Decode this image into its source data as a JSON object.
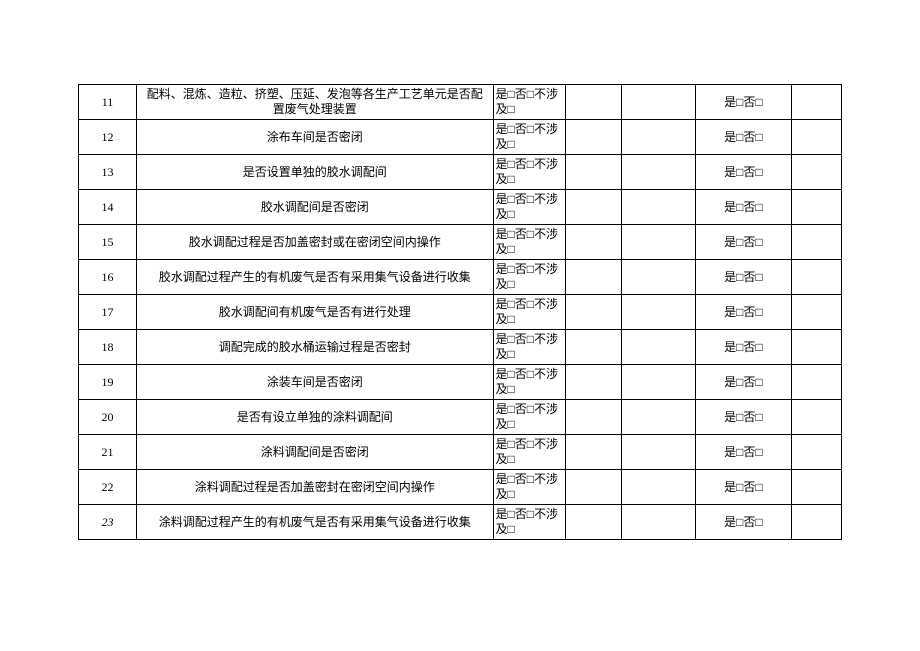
{
  "table": {
    "columns": {
      "num_width": 58,
      "desc_width": 356,
      "opt_width": 72,
      "blank1_width": 56,
      "blank2_width": 74,
      "res_width": 96,
      "blank3_width": 50
    },
    "border_color": "#000000",
    "background_color": "#ffffff",
    "font_family": "SimSun",
    "font_size_pt": 9,
    "rows": [
      {
        "num": "11",
        "num_italic": false,
        "desc": "配料、混炼、造粒、挤塑、压延、发泡等各生产工艺单元是否配置废气处理装置",
        "opt": "是□否□不涉及□",
        "res": "是□否□"
      },
      {
        "num": "12",
        "num_italic": false,
        "desc": "涂布车间是否密闭",
        "opt": "是□否□不涉及□",
        "res": "是□否□"
      },
      {
        "num": "13",
        "num_italic": false,
        "desc": "是否设置单独的胶水调配间",
        "opt": "是□否□不涉及□",
        "res": "是□否□"
      },
      {
        "num": "14",
        "num_italic": false,
        "desc": "胶水调配间是否密闭",
        "opt": "是□否□不涉及□",
        "res": "是□否□"
      },
      {
        "num": "15",
        "num_italic": false,
        "desc": "胶水调配过程是否加盖密封或在密闭空间内操作",
        "opt": "是□否□不涉及□",
        "res": "是□否□"
      },
      {
        "num": "16",
        "num_italic": false,
        "desc": "胶水调配过程产生的有机废气是否有采用集气设备进行收集",
        "opt": "是□否□不涉及□",
        "res": "是□否□"
      },
      {
        "num": "17",
        "num_italic": false,
        "desc": "胶水调配间有机废气是否有进行处理",
        "opt": "是□否□不涉及□",
        "res": "是□否□"
      },
      {
        "num": "18",
        "num_italic": false,
        "desc": "调配完成的胶水桶运输过程是否密封",
        "opt": "是□否□不涉及□",
        "res": "是□否□"
      },
      {
        "num": "19",
        "num_italic": false,
        "desc": "涂装车间是否密闭",
        "opt": "是□否□不涉及□",
        "res": "是□否□"
      },
      {
        "num": "20",
        "num_italic": false,
        "desc": "是否有设立单独的涂料调配间",
        "opt": "是□否□不涉及□",
        "res": "是□否□"
      },
      {
        "num": "21",
        "num_italic": false,
        "desc": "涂料调配间是否密闭",
        "opt": "是□否□不涉及□",
        "res": "是□否□"
      },
      {
        "num": "22",
        "num_italic": false,
        "desc": "涂料调配过程是否加盖密封在密闭空间内操作",
        "opt": "是□否□不涉及□",
        "res": "是□否□"
      },
      {
        "num": "23",
        "num_italic": true,
        "desc": "涂料调配过程产生的有机废气是否有采用集气设备进行收集",
        "opt": "是□否□不涉及□",
        "res": "是□否□"
      }
    ]
  }
}
